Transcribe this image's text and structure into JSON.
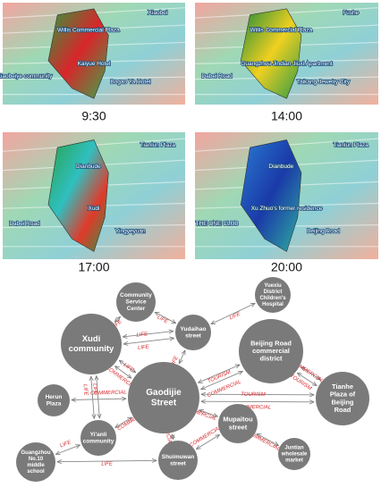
{
  "panels": [
    {
      "time": "9:30",
      "labels": [
        "Willis Commercial Plaza",
        "Xiaobei",
        "Kaiyue Hotel",
        "Bogao Ya Hotel",
        "Xiaobeiye community"
      ]
    },
    {
      "time": "14:00",
      "labels": [
        "Willis Commercial Plaza",
        "Fushe",
        "Guangzhou Jindian Jiuxi Apartment",
        "Taikang Jewelry City",
        "Dabei Road"
      ]
    },
    {
      "time": "17:00",
      "labels": [
        "Dianbude",
        "Tianlun Plaza",
        "Xudi",
        "Yingyeyuan",
        "Dabei Road"
      ]
    },
    {
      "time": "20:00",
      "labels": [
        "Dianbude",
        "Tianlun Plaza",
        "Xu Zhuo's former residence",
        "Beijing Road",
        "THE ONE CLUB"
      ]
    }
  ],
  "nodes": [
    {
      "label": [
        "Community",
        "Service",
        "Center"
      ]
    },
    {
      "label": [
        "Yuexiu",
        "District",
        "Children's",
        "Hospital"
      ]
    },
    {
      "label": [
        "Yudaihao",
        "street"
      ]
    },
    {
      "label": [
        "Xudi",
        "community"
      ]
    },
    {
      "label": [
        "Beijing Road",
        "commercial",
        "district"
      ]
    },
    {
      "label": [
        "Gaodijie",
        "Street"
      ]
    },
    {
      "label": [
        "Herun",
        "Plaza"
      ]
    },
    {
      "label": [
        "Tianhe",
        "Plaza of",
        "Beijing",
        "Road"
      ]
    },
    {
      "label": [
        "Mupaitou",
        "street"
      ]
    },
    {
      "label": [
        "Yi'anli",
        "community"
      ]
    },
    {
      "label": [
        "Juntian",
        "wholesale",
        "market"
      ]
    },
    {
      "label": [
        "Guangzhou",
        "No.10",
        "middle",
        "school"
      ]
    },
    {
      "label": [
        "Shuimuwan",
        "street"
      ]
    }
  ],
  "edges": [
    {
      "label": "LIFE"
    },
    {
      "label": "LIFE"
    },
    {
      "label": "LIFE"
    },
    {
      "label": "LIFE"
    },
    {
      "label": "LIFE"
    },
    {
      "label": "LIFE"
    },
    {
      "label": "COMMERCIAL"
    },
    {
      "label": "LIFE"
    },
    {
      "label": "TOURISM"
    },
    {
      "label": "COMMERCIAL"
    },
    {
      "label": "COMMERCIAL"
    },
    {
      "label": "TOURISM"
    },
    {
      "label": "TOURISM"
    },
    {
      "label": "COMMERCIAL"
    },
    {
      "label": "COMMERCIAL"
    },
    {
      "label": "LIFE"
    },
    {
      "label": "LIFE"
    },
    {
      "label": "COMMERCIAL"
    },
    {
      "label": "COMMERCIAL"
    },
    {
      "label": "COMMERCIAL"
    },
    {
      "label": "COMMERCIAL"
    },
    {
      "label": "COMMERCIAL"
    },
    {
      "label": "LIFE"
    },
    {
      "label": "LIFE"
    }
  ]
}
